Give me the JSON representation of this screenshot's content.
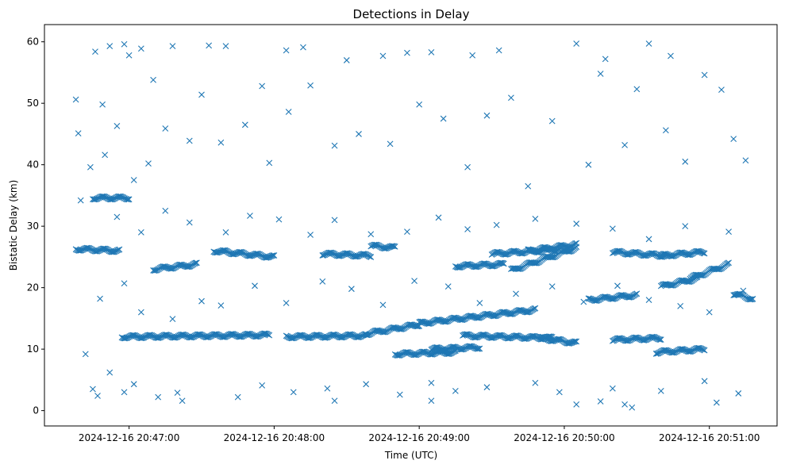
{
  "chart_data": {
    "type": "scatter",
    "title": "Detections in Delay",
    "xlabel": "Time (UTC)",
    "ylabel": "Bistatic Delay (km)",
    "marker": "x",
    "color": "#1f77b4",
    "grid": false,
    "legend": "none",
    "xlim": [
      "2024-12-16 20:46:25",
      "2024-12-16 20:51:28"
    ],
    "ylim": [
      -2.5,
      62.8
    ],
    "xticks": [
      "2024-12-16 20:47:00",
      "2024-12-16 20:48:00",
      "2024-12-16 20:49:00",
      "2024-12-16 20:50:00",
      "2024-12-16 20:51:00"
    ],
    "yticks": [
      0,
      10,
      20,
      30,
      40,
      50,
      60
    ],
    "tracks": [
      {
        "start": "2024-12-16 20:46:38",
        "end": "2024-12-16 20:46:56",
        "y_start": 26.3,
        "y_end": 26.0
      },
      {
        "start": "2024-12-16 20:46:45",
        "end": "2024-12-16 20:47:00",
        "y_start": 34.6,
        "y_end": 34.6
      },
      {
        "start": "2024-12-16 20:46:57",
        "end": "2024-12-16 20:47:58",
        "y_start": 12.0,
        "y_end": 12.3
      },
      {
        "start": "2024-12-16 20:47:10",
        "end": "2024-12-16 20:47:28",
        "y_start": 23.0,
        "y_end": 23.8
      },
      {
        "start": "2024-12-16 20:47:35",
        "end": "2024-12-16 20:48:00",
        "y_start": 26.0,
        "y_end": 25.0
      },
      {
        "start": "2024-12-16 20:48:05",
        "end": "2024-12-16 20:48:38",
        "y_start": 12.0,
        "y_end": 12.2
      },
      {
        "start": "2024-12-16 20:48:20",
        "end": "2024-12-16 20:48:40",
        "y_start": 25.5,
        "y_end": 25.2
      },
      {
        "start": "2024-12-16 20:48:40",
        "end": "2024-12-16 20:48:50",
        "y_start": 26.8,
        "y_end": 26.5
      },
      {
        "start": "2024-12-16 20:48:38",
        "end": "2024-12-16 20:49:00",
        "y_start": 12.5,
        "y_end": 14.0
      },
      {
        "start": "2024-12-16 20:48:50",
        "end": "2024-12-16 20:49:15",
        "y_start": 9.2,
        "y_end": 9.5
      },
      {
        "start": "2024-12-16 20:49:00",
        "end": "2024-12-16 20:49:48",
        "y_start": 14.2,
        "y_end": 16.4
      },
      {
        "start": "2024-12-16 20:49:05",
        "end": "2024-12-16 20:49:25",
        "y_start": 10.0,
        "y_end": 10.3
      },
      {
        "start": "2024-12-16 20:49:15",
        "end": "2024-12-16 20:49:35",
        "y_start": 23.5,
        "y_end": 23.8
      },
      {
        "start": "2024-12-16 20:49:18",
        "end": "2024-12-16 20:49:55",
        "y_start": 12.2,
        "y_end": 11.8
      },
      {
        "start": "2024-12-16 20:49:30",
        "end": "2024-12-16 20:49:58",
        "y_start": 25.5,
        "y_end": 26.2
      },
      {
        "start": "2024-12-16 20:49:38",
        "end": "2024-12-16 20:50:05",
        "y_start": 22.8,
        "y_end": 26.5
      },
      {
        "start": "2024-12-16 20:49:45",
        "end": "2024-12-16 20:50:05",
        "y_start": 26.0,
        "y_end": 27.0
      },
      {
        "start": "2024-12-16 20:49:50",
        "end": "2024-12-16 20:50:05",
        "y_start": 11.8,
        "y_end": 11.0
      },
      {
        "start": "2024-12-16 20:50:10",
        "end": "2024-12-16 20:50:30",
        "y_start": 18.0,
        "y_end": 18.8
      },
      {
        "start": "2024-12-16 20:50:20",
        "end": "2024-12-16 20:50:40",
        "y_start": 11.5,
        "y_end": 11.8
      },
      {
        "start": "2024-12-16 20:50:20",
        "end": "2024-12-16 20:50:42",
        "y_start": 25.8,
        "y_end": 25.2
      },
      {
        "start": "2024-12-16 20:50:40",
        "end": "2024-12-16 20:50:55",
        "y_start": 20.2,
        "y_end": 21.5
      },
      {
        "start": "2024-12-16 20:50:38",
        "end": "2024-12-16 20:50:58",
        "y_start": 9.5,
        "y_end": 10.0
      },
      {
        "start": "2024-12-16 20:50:40",
        "end": "2024-12-16 20:50:58",
        "y_start": 25.2,
        "y_end": 25.8
      },
      {
        "start": "2024-12-16 20:50:52",
        "end": "2024-12-16 20:51:08",
        "y_start": 21.5,
        "y_end": 23.8
      },
      {
        "start": "2024-12-16 20:51:10",
        "end": "2024-12-16 20:51:18",
        "y_start": 19.0,
        "y_end": 18.2
      }
    ],
    "scatter_points": [
      [
        "2024-12-16 20:46:38",
        50.6
      ],
      [
        "2024-12-16 20:46:39",
        45.1
      ],
      [
        "2024-12-16 20:46:46",
        58.4
      ],
      [
        "2024-12-16 20:46:49",
        49.8
      ],
      [
        "2024-12-16 20:46:52",
        59.3
      ],
      [
        "2024-12-16 20:46:58",
        59.6
      ],
      [
        "2024-12-16 20:47:00",
        57.8
      ],
      [
        "2024-12-16 20:47:05",
        58.9
      ],
      [
        "2024-12-16 20:47:10",
        53.8
      ],
      [
        "2024-12-16 20:47:18",
        59.3
      ],
      [
        "2024-12-16 20:47:33",
        59.4
      ],
      [
        "2024-12-16 20:47:40",
        59.3
      ],
      [
        "2024-12-16 20:47:55",
        52.8
      ],
      [
        "2024-12-16 20:48:05",
        58.6
      ],
      [
        "2024-12-16 20:48:12",
        59.1
      ],
      [
        "2024-12-16 20:48:30",
        57.0
      ],
      [
        "2024-12-16 20:48:45",
        57.7
      ],
      [
        "2024-12-16 20:48:55",
        58.2
      ],
      [
        "2024-12-16 20:49:05",
        58.3
      ],
      [
        "2024-12-16 20:49:22",
        57.8
      ],
      [
        "2024-12-16 20:49:33",
        58.6
      ],
      [
        "2024-12-16 20:50:05",
        59.7
      ],
      [
        "2024-12-16 20:50:17",
        57.2
      ],
      [
        "2024-12-16 20:50:35",
        59.7
      ],
      [
        "2024-12-16 20:50:44",
        57.7
      ],
      [
        "2024-12-16 20:50:58",
        54.6
      ],
      [
        "2024-12-16 20:46:40",
        34.2
      ],
      [
        "2024-12-16 20:46:44",
        39.6
      ],
      [
        "2024-12-16 20:46:50",
        41.6
      ],
      [
        "2024-12-16 20:46:55",
        46.3
      ],
      [
        "2024-12-16 20:47:02",
        37.5
      ],
      [
        "2024-12-16 20:47:08",
        40.2
      ],
      [
        "2024-12-16 20:47:15",
        45.9
      ],
      [
        "2024-12-16 20:47:25",
        43.9
      ],
      [
        "2024-12-16 20:47:30",
        51.4
      ],
      [
        "2024-12-16 20:47:38",
        43.6
      ],
      [
        "2024-12-16 20:47:48",
        46.5
      ],
      [
        "2024-12-16 20:47:58",
        40.3
      ],
      [
        "2024-12-16 20:48:06",
        48.6
      ],
      [
        "2024-12-16 20:48:15",
        52.9
      ],
      [
        "2024-12-16 20:48:25",
        43.1
      ],
      [
        "2024-12-16 20:48:35",
        45.0
      ],
      [
        "2024-12-16 20:48:48",
        43.4
      ],
      [
        "2024-12-16 20:49:00",
        49.8
      ],
      [
        "2024-12-16 20:49:10",
        47.5
      ],
      [
        "2024-12-16 20:49:20",
        39.6
      ],
      [
        "2024-12-16 20:49:28",
        48.0
      ],
      [
        "2024-12-16 20:49:38",
        50.9
      ],
      [
        "2024-12-16 20:49:45",
        36.5
      ],
      [
        "2024-12-16 20:49:55",
        47.1
      ],
      [
        "2024-12-16 20:50:10",
        40.0
      ],
      [
        "2024-12-16 20:50:15",
        54.8
      ],
      [
        "2024-12-16 20:50:25",
        43.2
      ],
      [
        "2024-12-16 20:50:30",
        52.3
      ],
      [
        "2024-12-16 20:50:42",
        45.6
      ],
      [
        "2024-12-16 20:50:50",
        40.5
      ],
      [
        "2024-12-16 20:51:05",
        52.2
      ],
      [
        "2024-12-16 20:51:10",
        44.2
      ],
      [
        "2024-12-16 20:51:15",
        40.7
      ],
      [
        "2024-12-16 20:46:42",
        9.2
      ],
      [
        "2024-12-16 20:46:45",
        3.5
      ],
      [
        "2024-12-16 20:46:47",
        2.4
      ],
      [
        "2024-12-16 20:46:52",
        6.2
      ],
      [
        "2024-12-16 20:46:58",
        3.0
      ],
      [
        "2024-12-16 20:47:02",
        4.3
      ],
      [
        "2024-12-16 20:47:12",
        2.2
      ],
      [
        "2024-12-16 20:47:20",
        2.9
      ],
      [
        "2024-12-16 20:47:22",
        1.6
      ],
      [
        "2024-12-16 20:47:45",
        2.2
      ],
      [
        "2024-12-16 20:47:55",
        4.1
      ],
      [
        "2024-12-16 20:48:08",
        3.0
      ],
      [
        "2024-12-16 20:48:22",
        3.6
      ],
      [
        "2024-12-16 20:48:25",
        1.6
      ],
      [
        "2024-12-16 20:48:38",
        4.3
      ],
      [
        "2024-12-16 20:48:52",
        2.6
      ],
      [
        "2024-12-16 20:49:05",
        4.5
      ],
      [
        "2024-12-16 20:49:05",
        1.6
      ],
      [
        "2024-12-16 20:49:15",
        3.2
      ],
      [
        "2024-12-16 20:49:28",
        3.8
      ],
      [
        "2024-12-16 20:49:48",
        4.5
      ],
      [
        "2024-12-16 20:49:58",
        3.0
      ],
      [
        "2024-12-16 20:50:05",
        1.0
      ],
      [
        "2024-12-16 20:50:15",
        1.5
      ],
      [
        "2024-12-16 20:50:20",
        3.6
      ],
      [
        "2024-12-16 20:50:25",
        1.0
      ],
      [
        "2024-12-16 20:50:28",
        0.5
      ],
      [
        "2024-12-16 20:50:40",
        3.2
      ],
      [
        "2024-12-16 20:50:58",
        4.8
      ],
      [
        "2024-12-16 20:51:03",
        1.3
      ],
      [
        "2024-12-16 20:51:12",
        2.8
      ],
      [
        "2024-12-16 20:46:48",
        18.2
      ],
      [
        "2024-12-16 20:46:58",
        20.7
      ],
      [
        "2024-12-16 20:47:05",
        16.0
      ],
      [
        "2024-12-16 20:47:18",
        14.9
      ],
      [
        "2024-12-16 20:47:30",
        17.8
      ],
      [
        "2024-12-16 20:47:38",
        17.1
      ],
      [
        "2024-12-16 20:47:52",
        20.3
      ],
      [
        "2024-12-16 20:48:05",
        17.5
      ],
      [
        "2024-12-16 20:48:20",
        21.0
      ],
      [
        "2024-12-16 20:48:32",
        19.8
      ],
      [
        "2024-12-16 20:48:45",
        17.2
      ],
      [
        "2024-12-16 20:48:58",
        21.1
      ],
      [
        "2024-12-16 20:49:12",
        20.2
      ],
      [
        "2024-12-16 20:49:25",
        17.5
      ],
      [
        "2024-12-16 20:49:40",
        19.0
      ],
      [
        "2024-12-16 20:49:55",
        20.2
      ],
      [
        "2024-12-16 20:50:08",
        17.7
      ],
      [
        "2024-12-16 20:50:22",
        20.3
      ],
      [
        "2024-12-16 20:50:35",
        18.0
      ],
      [
        "2024-12-16 20:50:48",
        17.0
      ],
      [
        "2024-12-16 20:51:00",
        16.0
      ],
      [
        "2024-12-16 20:51:14",
        19.5
      ],
      [
        "2024-12-16 20:46:55",
        31.5
      ],
      [
        "2024-12-16 20:47:05",
        29.0
      ],
      [
        "2024-12-16 20:47:15",
        32.5
      ],
      [
        "2024-12-16 20:47:25",
        30.6
      ],
      [
        "2024-12-16 20:47:40",
        29.0
      ],
      [
        "2024-12-16 20:47:50",
        31.7
      ],
      [
        "2024-12-16 20:48:02",
        31.1
      ],
      [
        "2024-12-16 20:48:15",
        28.6
      ],
      [
        "2024-12-16 20:48:25",
        31.0
      ],
      [
        "2024-12-16 20:48:40",
        28.7
      ],
      [
        "2024-12-16 20:48:55",
        29.1
      ],
      [
        "2024-12-16 20:49:08",
        31.4
      ],
      [
        "2024-12-16 20:49:20",
        29.5
      ],
      [
        "2024-12-16 20:49:32",
        30.2
      ],
      [
        "2024-12-16 20:49:48",
        31.2
      ],
      [
        "2024-12-16 20:50:05",
        30.4
      ],
      [
        "2024-12-16 20:50:20",
        29.6
      ],
      [
        "2024-12-16 20:50:35",
        27.9
      ],
      [
        "2024-12-16 20:50:50",
        30.0
      ],
      [
        "2024-12-16 20:51:08",
        29.1
      ]
    ]
  }
}
